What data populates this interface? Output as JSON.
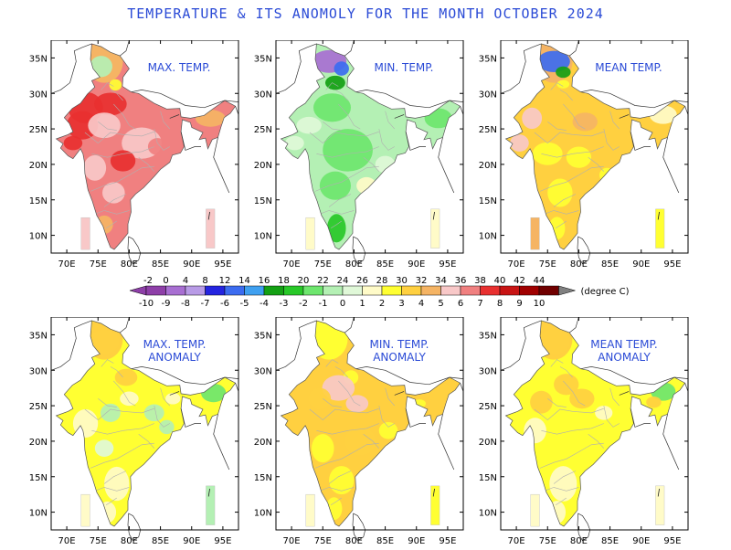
{
  "title": "TEMPERATURE & ITS ANOMOLY FOR THE MONTH OCTOBER 2024",
  "axes": {
    "lat_ticks": [
      "35N",
      "30N",
      "25N",
      "20N",
      "15N",
      "10N"
    ],
    "lon_ticks": [
      "70E",
      "75E",
      "80E",
      "85E",
      "90E",
      "95E"
    ]
  },
  "panels": [
    {
      "id": "max-temp",
      "label_line1": "MAX. TEMP.",
      "label_line2": "",
      "scheme": "max"
    },
    {
      "id": "min-temp",
      "label_line1": "MIN. TEMP.",
      "label_line2": "",
      "scheme": "min"
    },
    {
      "id": "mean-temp",
      "label_line1": "MEAN TEMP.",
      "label_line2": "",
      "scheme": "mean"
    },
    {
      "id": "max-anom",
      "label_line1": "MAX. TEMP.",
      "label_line2": "ANOMALY",
      "scheme": "maxa"
    },
    {
      "id": "min-anom",
      "label_line1": "MIN. TEMP.",
      "label_line2": "ANOMALY",
      "scheme": "mina"
    },
    {
      "id": "mean-anom",
      "label_line1": "MEAN TEMP.",
      "label_line2": "ANOMALY",
      "scheme": "meana"
    }
  ],
  "legend": {
    "unit": "(degree C)",
    "temp_labels": [
      "-2",
      "0",
      "4",
      "8",
      "12",
      "14",
      "16",
      "18",
      "20",
      "22",
      "24",
      "26",
      "28",
      "30",
      "32",
      "34",
      "36",
      "38",
      "40",
      "42",
      "44"
    ],
    "anom_labels": [
      "-10",
      "-9",
      "-8",
      "-7",
      "-6",
      "-5",
      "-4",
      "-3",
      "-2",
      "-1",
      "0",
      "1",
      "2",
      "3",
      "4",
      "5",
      "6",
      "7",
      "8",
      "9",
      "10"
    ],
    "colors": [
      "#8e3fa8",
      "#a86fd2",
      "#b89be6",
      "#2424e0",
      "#3c6cf0",
      "#3fa0f0",
      "#14a014",
      "#28c828",
      "#6ee66e",
      "#b4f0b4",
      "#e0f8d8",
      "#fffbc8",
      "#ffff32",
      "#ffd040",
      "#f5b464",
      "#f8c8c8",
      "#f08080",
      "#e83030",
      "#c81414",
      "#a00000",
      "#700000"
    ]
  },
  "colors": {
    "title": "#2b4bd6",
    "panel_label": "#2b4bd6"
  }
}
